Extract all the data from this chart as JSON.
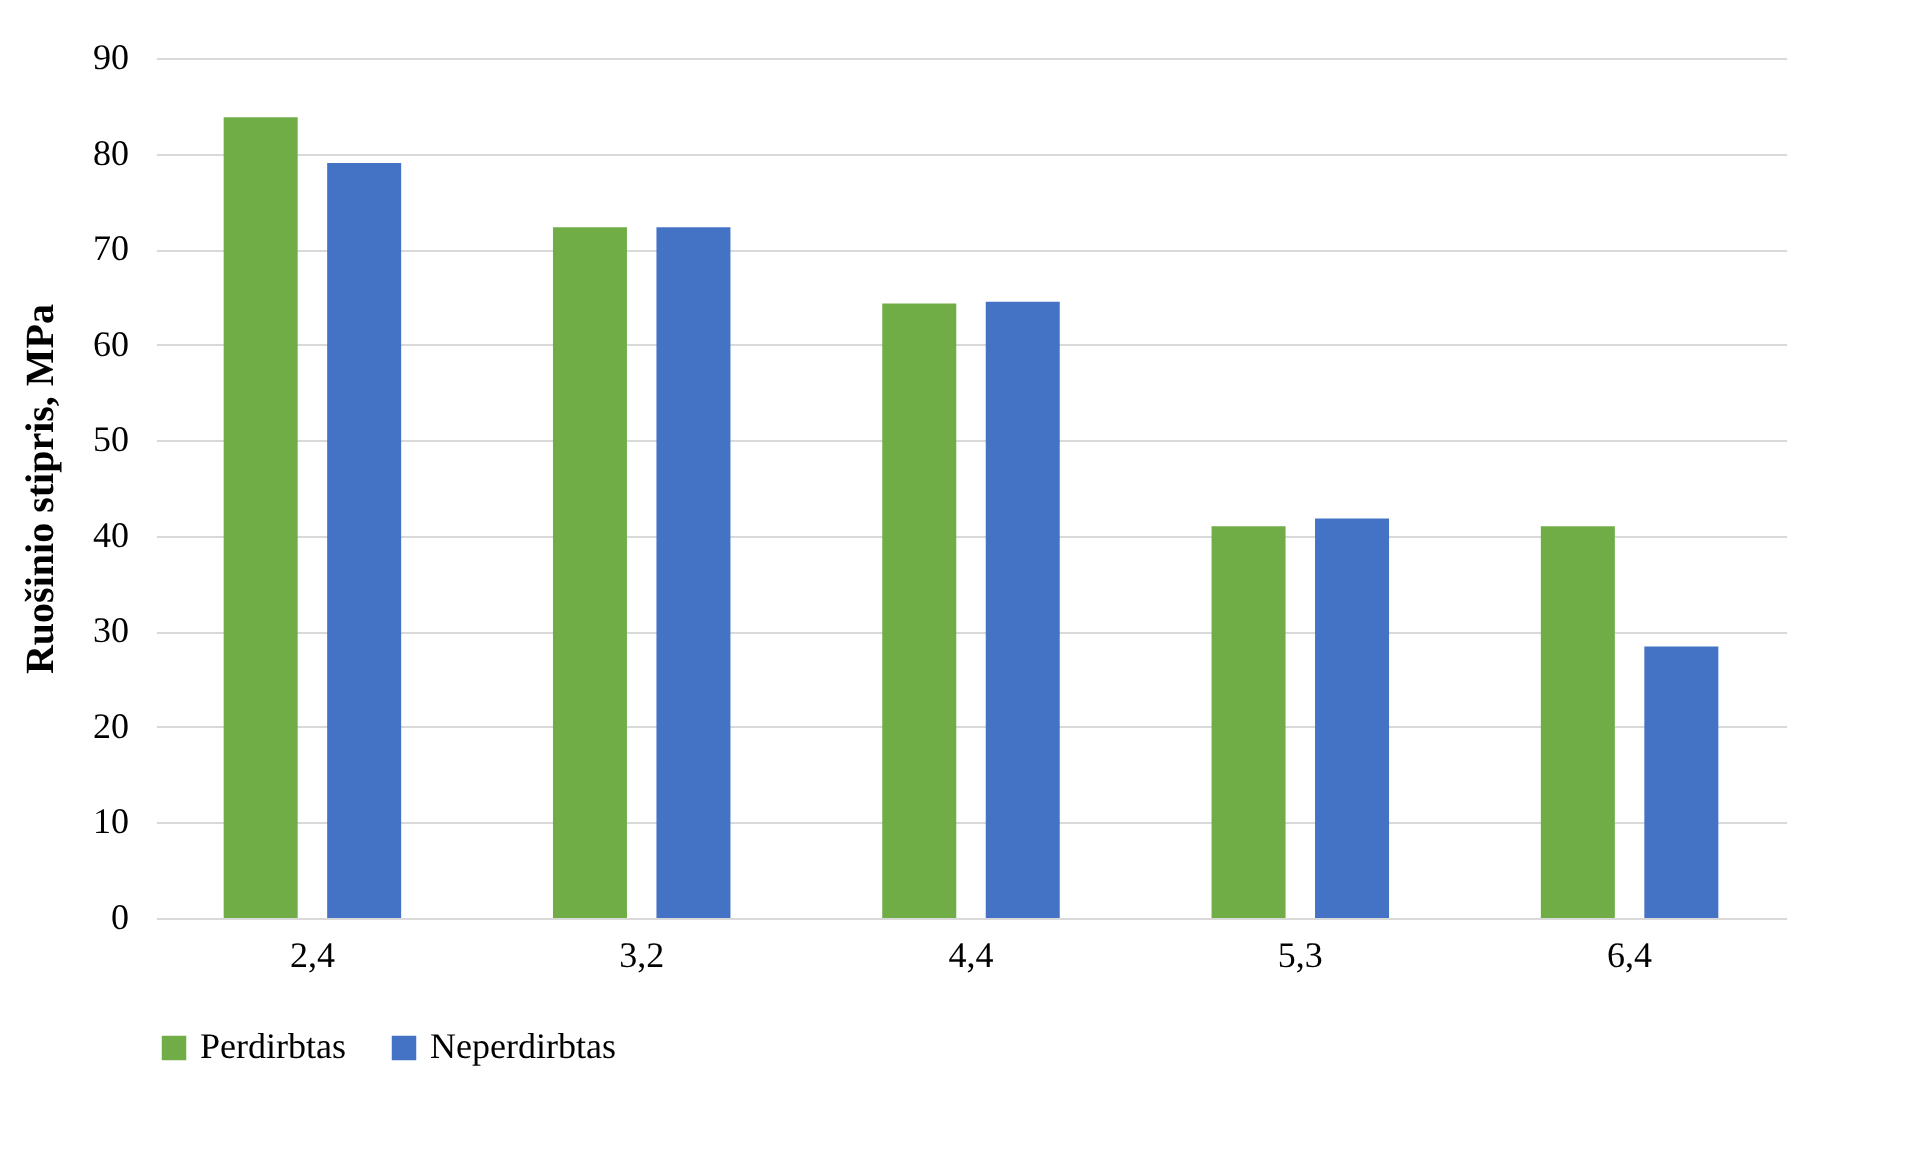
{
  "chart_data": {
    "type": "bar",
    "ylabel": "Ruošinio stipris, MPa",
    "categories": [
      "2,4",
      "3,2",
      "4,4",
      "5,3",
      "6,4"
    ],
    "series": [
      {
        "name": "Perdirbtas",
        "color": "#70ad47",
        "values": [
          83.8,
          72.3,
          64.3,
          41,
          41
        ]
      },
      {
        "name": "Neperdirbtas",
        "color": "#4472c4",
        "values": [
          79,
          72.3,
          64.5,
          41.8,
          28.4
        ]
      }
    ],
    "ylim": [
      0,
      90
    ],
    "yticks": [
      0,
      10,
      20,
      30,
      40,
      50,
      60,
      70,
      80,
      90
    ],
    "grid": "y",
    "legend": "bottom"
  }
}
